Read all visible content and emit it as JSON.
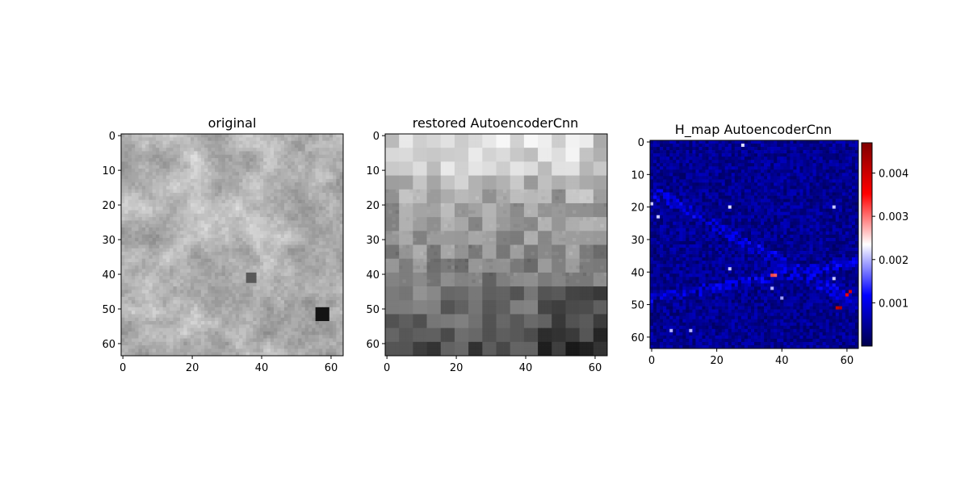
{
  "chart_data": [
    {
      "type": "heatmap",
      "title": "original",
      "colormap": "gray",
      "image_size": [
        64,
        64
      ],
      "xticks": [
        0,
        20,
        40,
        60
      ],
      "yticks": [
        0,
        10,
        20,
        30,
        40,
        50,
        60
      ],
      "xlim": [
        -0.5,
        63.5
      ],
      "ylim": [
        63.5,
        -0.5
      ],
      "grid": false
    },
    {
      "type": "heatmap",
      "title": "restored AutoencoderCnn",
      "colormap": "gray",
      "image_size": [
        64,
        64
      ],
      "block_size": 4,
      "xticks": [
        0,
        20,
        40,
        60
      ],
      "yticks": [
        0,
        10,
        20,
        30,
        40,
        50,
        60
      ],
      "xlim": [
        -0.5,
        63.5
      ],
      "ylim": [
        63.5,
        -0.5
      ],
      "grid": false
    },
    {
      "type": "heatmap",
      "title": "H_map AutoencoderCnn",
      "colormap": "seismic",
      "image_size": [
        64,
        64
      ],
      "xticks": [
        0,
        20,
        40,
        60
      ],
      "yticks": [
        0,
        10,
        20,
        30,
        40,
        50,
        60
      ],
      "xlim": [
        -0.5,
        63.5
      ],
      "ylim": [
        63.5,
        -0.5
      ],
      "grid": false,
      "colorbar": {
        "min": 0.0,
        "max": 0.0047,
        "ticks": [
          0.001,
          0.002,
          0.003,
          0.004
        ],
        "tick_labels": [
          "0.001",
          "0.002",
          "0.003",
          "0.004"
        ],
        "colors": [
          "#00004c",
          "#0000ff",
          "#ffffff",
          "#ff0000",
          "#800000"
        ]
      },
      "hotspots": [
        {
          "x": 37,
          "y": 41,
          "value": 0.0032
        },
        {
          "x": 38,
          "y": 41,
          "value": 0.0031
        },
        {
          "x": 57,
          "y": 51,
          "value": 0.0041
        },
        {
          "x": 58,
          "y": 51,
          "value": 0.0043
        },
        {
          "x": 61,
          "y": 46,
          "value": 0.0039
        },
        {
          "x": 60,
          "y": 47,
          "value": 0.0036
        },
        {
          "x": 28,
          "y": 1,
          "value": 0.0022
        },
        {
          "x": 24,
          "y": 20,
          "value": 0.0022
        },
        {
          "x": 0,
          "y": 19,
          "value": 0.0021
        },
        {
          "x": 2,
          "y": 23,
          "value": 0.0021
        },
        {
          "x": 24,
          "y": 39,
          "value": 0.0021
        },
        {
          "x": 56,
          "y": 42,
          "value": 0.0021
        },
        {
          "x": 56,
          "y": 20,
          "value": 0.0021
        },
        {
          "x": 6,
          "y": 58,
          "value": 0.002
        },
        {
          "x": 12,
          "y": 58,
          "value": 0.002
        },
        {
          "x": 37,
          "y": 45,
          "value": 0.002
        },
        {
          "x": 40,
          "y": 48,
          "value": 0.0019
        }
      ]
    }
  ]
}
